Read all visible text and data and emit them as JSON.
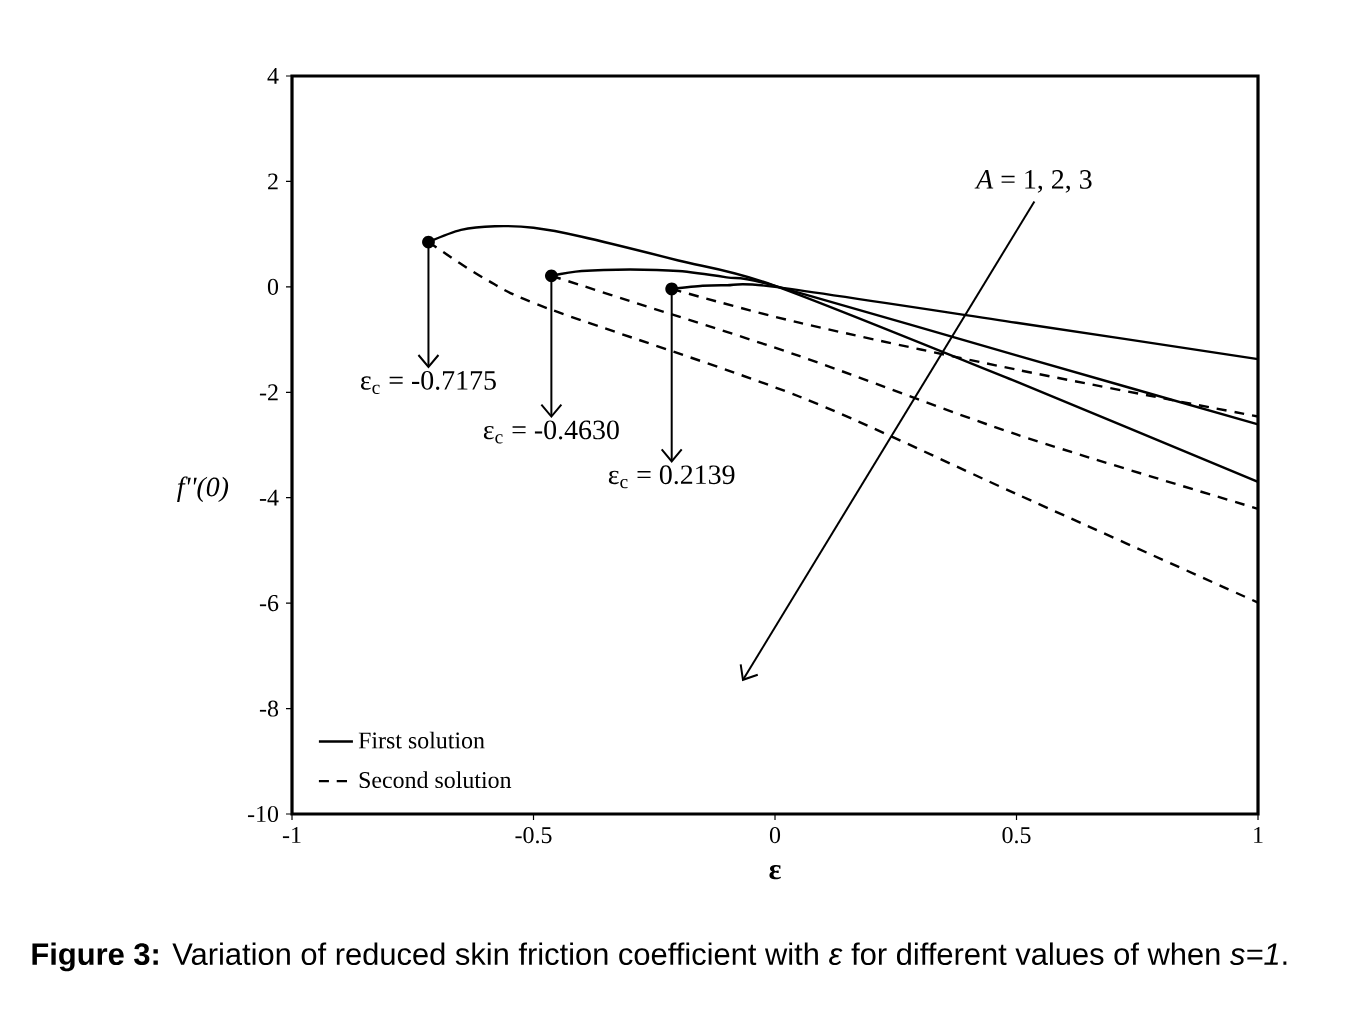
{
  "chart_data": {
    "type": "line",
    "xlabel": "ε",
    "ylabel": "f''(0)",
    "xlim": [
      -1,
      1
    ],
    "ylim": [
      -10,
      4
    ],
    "xticks": [
      -1,
      -0.5,
      0,
      0.5,
      1
    ],
    "yticks": [
      -10,
      -8,
      -6,
      -4,
      -2,
      0,
      2,
      4
    ],
    "legend": "bottom left",
    "marker": "none",
    "grid": false,
    "series": [
      {
        "name": "First solution",
        "color": "#000000",
        "line_style": "solid",
        "x": [
          -0.7175,
          -0.65,
          -0.58,
          -0.5,
          -0.4,
          -0.2,
          0,
          0.5,
          1
        ],
        "values": [
          0.85,
          1.08,
          1.15,
          1.12,
          0.95,
          0.5,
          0.02,
          -1.8,
          -3.7
        ]
      },
      {
        "color": "#000000",
        "line_style": "solid",
        "x": [
          -0.463,
          -0.4,
          -0.3,
          -0.2,
          -0.1,
          0,
          0.5,
          1
        ],
        "values": [
          0.21,
          0.3,
          0.33,
          0.3,
          0.18,
          0.02,
          -1.3,
          -2.61
        ]
      },
      {
        "color": "#000000",
        "line_style": "solid",
        "x": [
          -0.2139,
          -0.15,
          -0.1,
          0,
          0.5,
          1
        ],
        "values": [
          -0.04,
          0.02,
          0.03,
          0,
          -0.68,
          -1.37
        ]
      },
      {
        "name": "Second solution",
        "color": "#000000",
        "line_style": "dashed",
        "x": [
          -0.7175,
          -0.6,
          -0.47,
          0.05,
          0.5,
          1
        ],
        "values": [
          0.85,
          0.15,
          -0.41,
          -2.08,
          -3.93,
          -5.99
        ]
      },
      {
        "color": "#000000",
        "line_style": "dashed",
        "x": [
          -0.463,
          -0.3,
          0.05,
          0.5,
          1
        ],
        "values": [
          0.21,
          -0.27,
          -1.31,
          -2.8,
          -4.21
        ]
      },
      {
        "color": "#000000",
        "line_style": "dashed",
        "x": [
          -0.2139,
          0.05,
          0.5,
          1
        ],
        "values": [
          -0.04,
          -0.68,
          -1.57,
          -2.46
        ]
      }
    ],
    "annotations": [
      {
        "text": "ε$_{c}$ = -0.7175",
        "x": -0.7175,
        "y": 0.85
      },
      {
        "text": "ε$_{c}$ = -0.4630",
        "x": -0.463,
        "y": 0.21
      },
      {
        "text": "ε$_{c}$ = 0.2139",
        "x": -0.2139,
        "y": -0.04
      },
      "*A* = 1, 2, 3",
      "**Figure 3:** Variation of reduced skin friction coefficient with *ε* for different values of when *s=1*."
    ]
  }
}
